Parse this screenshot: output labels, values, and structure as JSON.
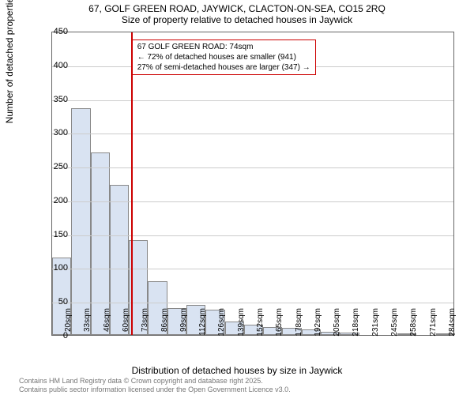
{
  "title": {
    "line1": "67, GOLF GREEN ROAD, JAYWICK, CLACTON-ON-SEA, CO15 2RQ",
    "line2": "Size of property relative to detached houses in Jaywick"
  },
  "chart": {
    "type": "histogram",
    "ylabel": "Number of detached properties",
    "xlabel": "Distribution of detached houses by size in Jaywick",
    "ylim": [
      0,
      450
    ],
    "ytick_step": 50,
    "yticks": [
      0,
      50,
      100,
      150,
      200,
      250,
      300,
      350,
      400,
      450
    ],
    "x_categories": [
      "20sqm",
      "33sqm",
      "46sqm",
      "60sqm",
      "73sqm",
      "86sqm",
      "99sqm",
      "112sqm",
      "126sqm",
      "139sqm",
      "152sqm",
      "165sqm",
      "178sqm",
      "192sqm",
      "205sqm",
      "218sqm",
      "231sqm",
      "245sqm",
      "258sqm",
      "271sqm",
      "284sqm"
    ],
    "values": [
      115,
      335,
      270,
      222,
      140,
      80,
      40,
      45,
      38,
      20,
      15,
      12,
      10,
      8,
      5,
      4,
      0,
      0,
      2,
      0,
      2
    ],
    "bar_fill": "#d9e3f2",
    "bar_border": "#888888",
    "grid_color": "#cccccc",
    "background_color": "#ffffff",
    "axis_color": "#666666",
    "bar_width_ratio": 1.0,
    "marker": {
      "position_index": 4.1,
      "color": "#cc0000",
      "width": 2
    },
    "annotation": {
      "line1": "← 72% of detached houses are smaller (941)",
      "line2": "27% of semi-detached houses are larger (347) →",
      "header": "67 GOLF GREEN ROAD: 74sqm",
      "border_color": "#cc0000",
      "left_index": 3.9,
      "top_value": 440
    }
  },
  "footer": {
    "line1": "Contains HM Land Registry data © Crown copyright and database right 2025.",
    "line2": "Contains public sector information licensed under the Open Government Licence v3.0."
  }
}
